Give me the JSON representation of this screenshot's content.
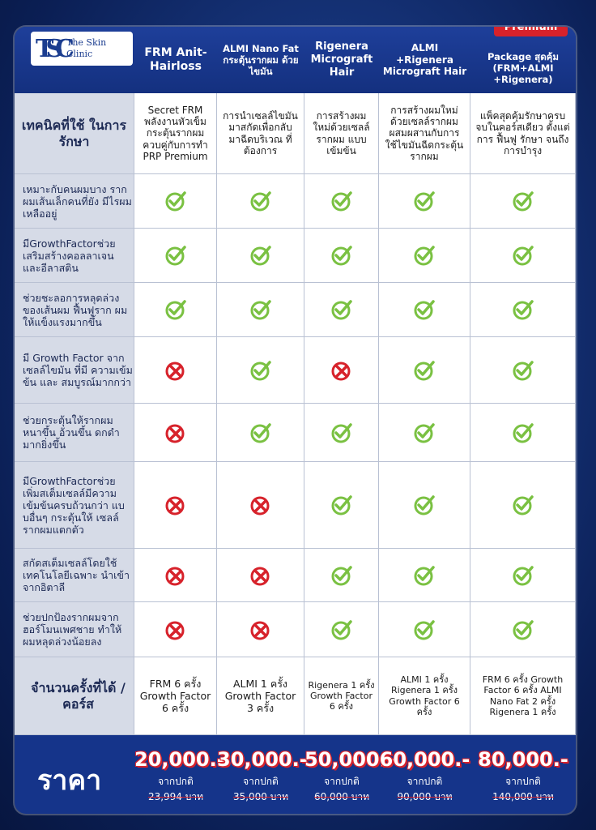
{
  "premium_badge": "Premium",
  "logo": {
    "mark": "TSC",
    "line1": "The Skin",
    "line2": "Clinic"
  },
  "columns": [
    "FRM Anit-Hairloss",
    "ALMI Nano Fat กระตุ้นรากผม ด้วยไขมัน",
    "Rigenera Micrograft Hair",
    "ALMI +Rigenera Micrograft Hair",
    "Package สุดคุ้ม (FRM+ALMI +Rigenera)"
  ],
  "technique": {
    "label": "เทคนิคที่ใช้ ในการรักษา",
    "cells": [
      "Secret FRM พลังงานหัวเข็ม กระตุ้นรากผม ควบคู่กับการทำ PRP Premium",
      "การนำเซลล์ไขมัน มาสกัดเพื่อกลับ มาฉีดบริเวณ ที่ต้องการ",
      "การสร้างผม ใหม่ด้วยเซลล์ รากผม แบบเข้มข้น",
      "การสร้างผมใหม่ ด้วยเซลล์รากผม ผสมผสานกับการ ใช้ไขมันฉีดกระตุ้น รากผม",
      "แพ็คสุดคุ้มรักษาครบ จบในคอร์สเดียว ตั้งแต่การ ฟื้นฟู รักษา จนถึงการบำรุง"
    ]
  },
  "features": [
    {
      "label": "เหมาะกับคนผมบาง รากผมเส้นเล็กคนที่ยัง มีไรผมเหลืออยู่",
      "marks": [
        "check",
        "check",
        "check",
        "check",
        "check"
      ]
    },
    {
      "label": "มีGrowthFactorช่วย เสริมสร้างคอลลาเจน และอีลาสติน",
      "marks": [
        "check",
        "check",
        "check",
        "check",
        "check"
      ]
    },
    {
      "label": "ช่วยชะลอการหลุดล่วง ของเส้นผม ฟื้นฟูราก ผมให้แข็งแรงมากขึ้น",
      "marks": [
        "check",
        "check",
        "check",
        "check",
        "check"
      ]
    },
    {
      "label": "มี Growth Factor จากเซลล์ไขมัน ที่มี ความเข้มข้น และ สมบูรณ์มากกว่า",
      "marks": [
        "cross",
        "check",
        "cross_red",
        "check",
        "check"
      ]
    },
    {
      "label": "ช่วยกระตุ้นให้รากผม หนาขึ้น อ้วนขึ้น ดกดำมากยิ่งขึ้น",
      "marks": [
        "cross",
        "check",
        "check",
        "check",
        "check"
      ]
    },
    {
      "label": "มีGrowthFactorช่วย เพิ่มสเต็มเซลล์มีความ เข้มข้นครบถ้วนกว่า แบบอื่นๆ กระตุ้นให้ เซลล์รากผมแตกตัว",
      "marks": [
        "cross",
        "cross",
        "check",
        "check",
        "check"
      ]
    },
    {
      "label": "สกัดสเต็มเซลล์โดยใช้ เทคโนโลยีเฉพาะ นำเข้าจากอิตาลี",
      "marks": [
        "cross",
        "cross",
        "check",
        "check",
        "check"
      ]
    },
    {
      "label": "ช่วยปกป้องรากผมจาก ฮอร์โมนเพศชาย ทำให้ ผมหลุดล่วงน้อยลง",
      "marks": [
        "cross",
        "cross",
        "check",
        "check",
        "check"
      ]
    }
  ],
  "sessions": {
    "label": "จำนวนครั้งที่ได้ /คอร์ส",
    "cells": [
      "FRM 6 ครั้ง Growth Factor 6 ครั้ง",
      "ALMI 1 ครั้ง Growth Factor 3 ครั้ง",
      "Rigenera 1 ครั้ง Growth Factor 6 ครั้ง",
      "ALMI 1 ครั้ง Rigenera 1 ครั้ง Growth Factor 6 ครั้ง",
      "FRM 6 ครั้ง Growth Factor 6 ครั้ง ALMI Nano Fat 2 ครั้ง Rigenera 1 ครั้ง"
    ]
  },
  "price": {
    "label": "ราคา",
    "items": [
      {
        "value": "20,000.-",
        "sub": "จากปกติ",
        "old": "23,994 บาท"
      },
      {
        "value": "30,000.-",
        "sub": "จากปกติ",
        "old": "35,000 บาท"
      },
      {
        "value": "50,000.-",
        "sub": "จากปกติ",
        "old": "60,000 บาท"
      },
      {
        "value": "60,000.-",
        "sub": "จากปกติ",
        "old": "90,000 บาท"
      },
      {
        "value": "80,000.-",
        "sub": "จากปกติ",
        "old": "140,000 บาท"
      }
    ]
  },
  "colors": {
    "check": "#7ac142",
    "cross": "#d7222b"
  }
}
